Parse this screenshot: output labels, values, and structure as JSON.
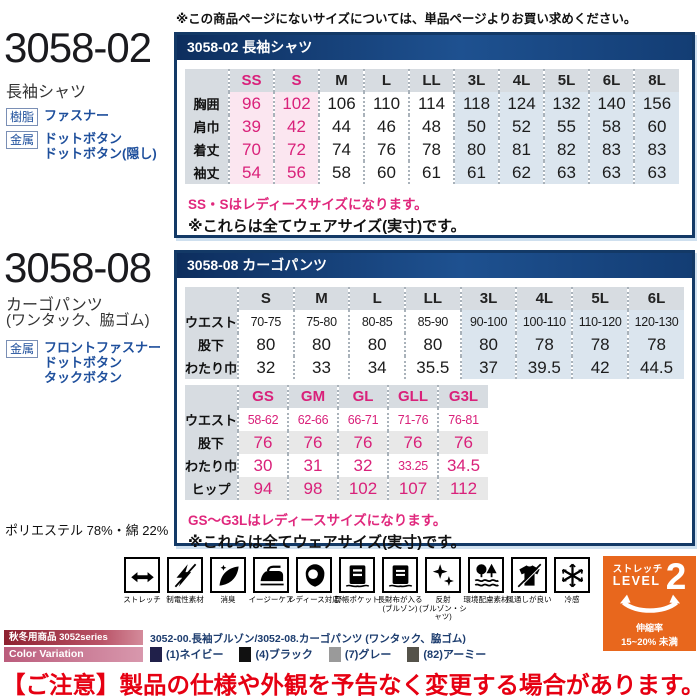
{
  "page": {
    "top_note": "※この商品ページにないサイズについては、単品ページよりお買い求めください。",
    "notice": "【ご注意】製品の仕様や外観を予告なく変更する場合があります。"
  },
  "product1": {
    "code": "3058-02",
    "name": "長袖シャツ",
    "specs": [
      {
        "tag": "樹脂",
        "lines": [
          "ファスナー"
        ]
      },
      {
        "tag": "金属",
        "lines": [
          "ドットボタン",
          "ドットボタン(隠し)"
        ]
      }
    ]
  },
  "product2": {
    "code": "3058-08",
    "name": "カーゴパンツ",
    "name2": "(ワンタック、脇ゴム)",
    "specs": [
      {
        "tag": "金属",
        "lines": [
          "フロントファスナー",
          "ドットボタン",
          "タックボタン"
        ]
      }
    ],
    "material": "ポリエステル 78%・綿 22%"
  },
  "table1": {
    "title": "3058-02 長袖シャツ",
    "columns": [
      "SS",
      "S",
      "M",
      "L",
      "LL",
      "3L",
      "4L",
      "5L",
      "6L",
      "8L"
    ],
    "rows": [
      {
        "label": "胸囲",
        "values": [
          "96",
          "102",
          "106",
          "110",
          "114",
          "118",
          "124",
          "132",
          "140",
          "156"
        ]
      },
      {
        "label": "肩巾",
        "values": [
          "39",
          "42",
          "44",
          "46",
          "48",
          "50",
          "52",
          "55",
          "58",
          "60"
        ]
      },
      {
        "label": "着丈",
        "values": [
          "70",
          "72",
          "74",
          "76",
          "78",
          "80",
          "81",
          "82",
          "83",
          "83"
        ]
      },
      {
        "label": "袖丈",
        "values": [
          "54",
          "56",
          "58",
          "60",
          "61",
          "61",
          "62",
          "63",
          "63",
          "63"
        ]
      }
    ],
    "note_pink": "SS・Sはレディースサイズになります。",
    "note_black": "※これらは全てウェアサイズ(実寸)です。"
  },
  "table2": {
    "title": "3058-08 カーゴパンツ",
    "columns": [
      "S",
      "M",
      "L",
      "LL",
      "3L",
      "4L",
      "5L",
      "6L"
    ],
    "rows": [
      {
        "label": "ウエスト",
        "values": [
          "70-75",
          "75-80",
          "80-85",
          "85-90",
          "90-100",
          "100-110",
          "110-120",
          "120-130"
        ]
      },
      {
        "label": "股下",
        "values": [
          "80",
          "80",
          "80",
          "80",
          "80",
          "78",
          "78",
          "78"
        ]
      },
      {
        "label": "わたり巾",
        "values": [
          "32",
          "33",
          "34",
          "35.5",
          "37",
          "39.5",
          "42",
          "44.5"
        ]
      }
    ]
  },
  "table3": {
    "columns": [
      "GS",
      "GM",
      "GL",
      "GLL",
      "G3L"
    ],
    "rows": [
      {
        "label": "ウエスト",
        "values": [
          "58-62",
          "62-66",
          "66-71",
          "71-76",
          "76-81"
        ]
      },
      {
        "label": "股下",
        "values": [
          "76",
          "76",
          "76",
          "76",
          "76"
        ]
      },
      {
        "label": "わたり巾",
        "values": [
          "30",
          "31",
          "32",
          "33.25",
          "34.5"
        ]
      },
      {
        "label": "ヒップ",
        "values": [
          "94",
          "98",
          "102",
          "107",
          "112"
        ]
      }
    ],
    "note_pink": "GS〜G3Lはレディースサイズになります。",
    "note_black": "※これらは全てウェアサイズ(実寸)です。"
  },
  "features": [
    {
      "icon": "stretch",
      "label": "ストレッチ"
    },
    {
      "icon": "anti-static",
      "label": "制電性素材"
    },
    {
      "icon": "deodorant",
      "label": "消臭"
    },
    {
      "icon": "easy-care",
      "label": "イージーケア"
    },
    {
      "icon": "ladies",
      "label": "レディース対応"
    },
    {
      "icon": "level-book",
      "label": "野帳ポケット"
    },
    {
      "icon": "long-wallet",
      "label": "長財布が入る",
      "sub": "(ブルゾン)"
    },
    {
      "icon": "reflective",
      "label": "反射",
      "sub": "(ブルゾン・シャツ)"
    },
    {
      "icon": "eco",
      "label": "環境配慮素材"
    },
    {
      "icon": "breathable",
      "label": "風通しが良い"
    },
    {
      "icon": "cool",
      "label": "冷感"
    }
  ],
  "stretch_badge": {
    "title_small": "ストレッチ",
    "level_word": "LEVEL",
    "level": "2",
    "sub1": "伸縮率",
    "sub2": "15~20% 未満"
  },
  "series": {
    "bar1": "秋冬用商品 3052series",
    "items": "3052-00.長袖ブルゾン/3052-08.カーゴパンツ (ワンタック、脇ゴム)",
    "bar2": "Color Variation",
    "colors": [
      {
        "label": "(1)ネイビー",
        "hex": "#20204a"
      },
      {
        "label": "(4)ブラック",
        "hex": "#111111"
      },
      {
        "label": "(7)グレー",
        "hex": "#9a9a9a"
      },
      {
        "label": "(82)アーミー",
        "hex": "#55534a"
      }
    ]
  }
}
